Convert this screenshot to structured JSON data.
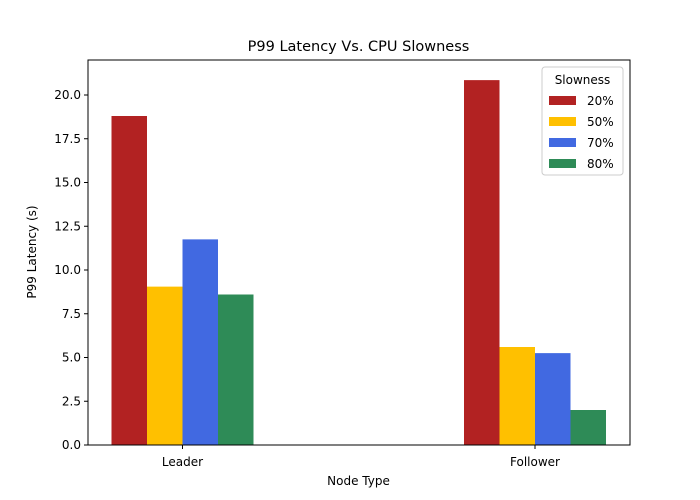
{
  "chart_data": {
    "type": "bar",
    "title": "P99 Latency Vs. CPU Slowness",
    "xlabel": "Node Type",
    "ylabel": "P99 Latency (s)",
    "categories": [
      "Leader",
      "Follower"
    ],
    "series": [
      {
        "name": "20%",
        "color": "#b22222",
        "values": [
          18.8,
          20.85
        ]
      },
      {
        "name": "50%",
        "color": "#ffc000",
        "values": [
          9.05,
          5.6
        ]
      },
      {
        "name": "70%",
        "color": "#4169e1",
        "values": [
          11.75,
          5.25
        ]
      },
      {
        "name": "80%",
        "color": "#2e8b57",
        "values": [
          8.6,
          2.0
        ]
      }
    ],
    "ylim": [
      0,
      22
    ],
    "yticks": [
      "0.0",
      "2.5",
      "5.0",
      "7.5",
      "10.0",
      "12.5",
      "15.0",
      "17.5",
      "20.0"
    ],
    "legend": {
      "title": "Slowness",
      "placement": "top-right"
    },
    "grid": false
  }
}
